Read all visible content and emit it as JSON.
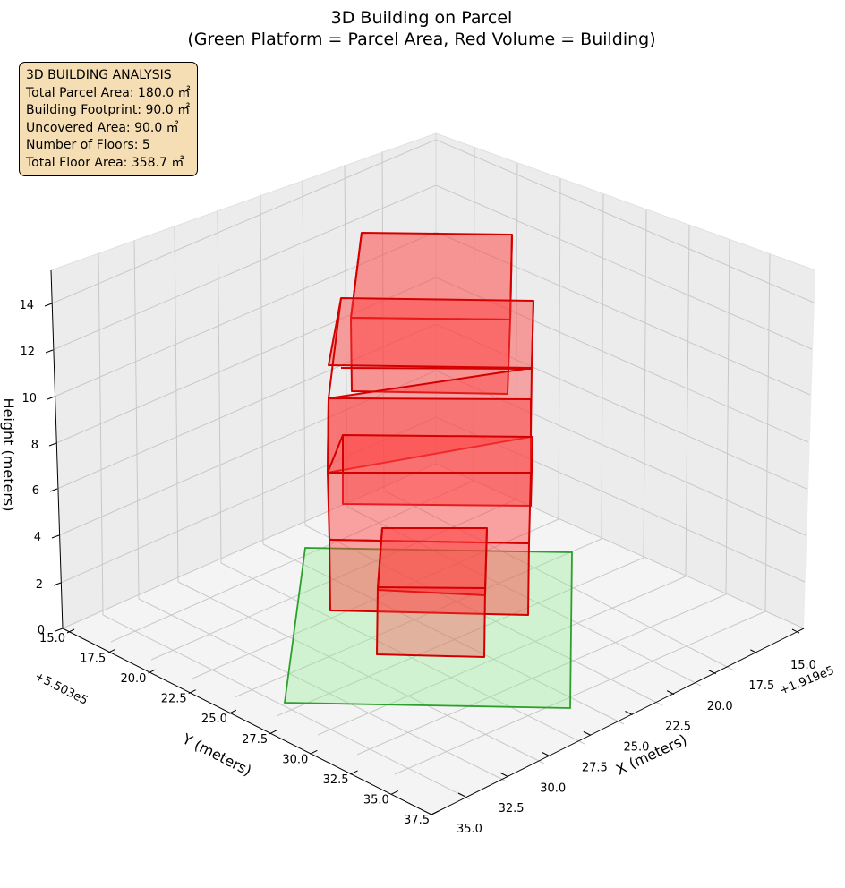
{
  "chart_data": {
    "type": "3d-box",
    "title_line1": "3D Building on Parcel",
    "title_line2": "(Green Platform = Parcel Area, Red Volume = Building)",
    "x_axis": {
      "label": "X (meters)",
      "offset_label": "+1.919e5",
      "ticks": [
        "15.0",
        "17.5",
        "20.0",
        "22.5",
        "25.0",
        "27.5",
        "30.0",
        "32.5",
        "35.0"
      ]
    },
    "y_axis": {
      "label": "Y (meters)",
      "offset_label": "+5.503e5",
      "ticks": [
        "15.0",
        "17.5",
        "20.0",
        "22.5",
        "25.0",
        "27.5",
        "30.0",
        "32.5",
        "35.0",
        "37.5"
      ]
    },
    "z_axis": {
      "label": "Height (meters)",
      "ticks": [
        "0",
        "2",
        "4",
        "6",
        "8",
        "10",
        "12",
        "14"
      ],
      "range": [
        0,
        15
      ]
    },
    "parcel": {
      "color": "#2ca02c",
      "fill": "#90ee90",
      "z": 0
    },
    "building": {
      "color": "#d40000",
      "fill": "#ff3b3b",
      "floors": [
        {
          "floor": 1,
          "z_bottom": 0,
          "z_top": 3
        },
        {
          "floor": 2,
          "z_bottom": 3,
          "z_top": 6
        },
        {
          "floor": 3,
          "z_bottom": 6,
          "z_top": 9
        },
        {
          "floor": 4,
          "z_bottom": 9,
          "z_top": 12
        },
        {
          "floor": 5,
          "z_bottom": 12,
          "z_top": 15
        }
      ]
    },
    "grid": true
  },
  "info": {
    "heading": "3D BUILDING ANALYSIS",
    "total_parcel_area": "Total Parcel Area: 180.0 ㎡",
    "building_footprint": "Building Footprint: 90.0 ㎡",
    "uncovered_area": "Uncovered Area: 90.0 ㎡",
    "number_of_floors": "Number of Floors: 5",
    "total_floor_area": "Total Floor Area: 358.7 ㎡"
  }
}
